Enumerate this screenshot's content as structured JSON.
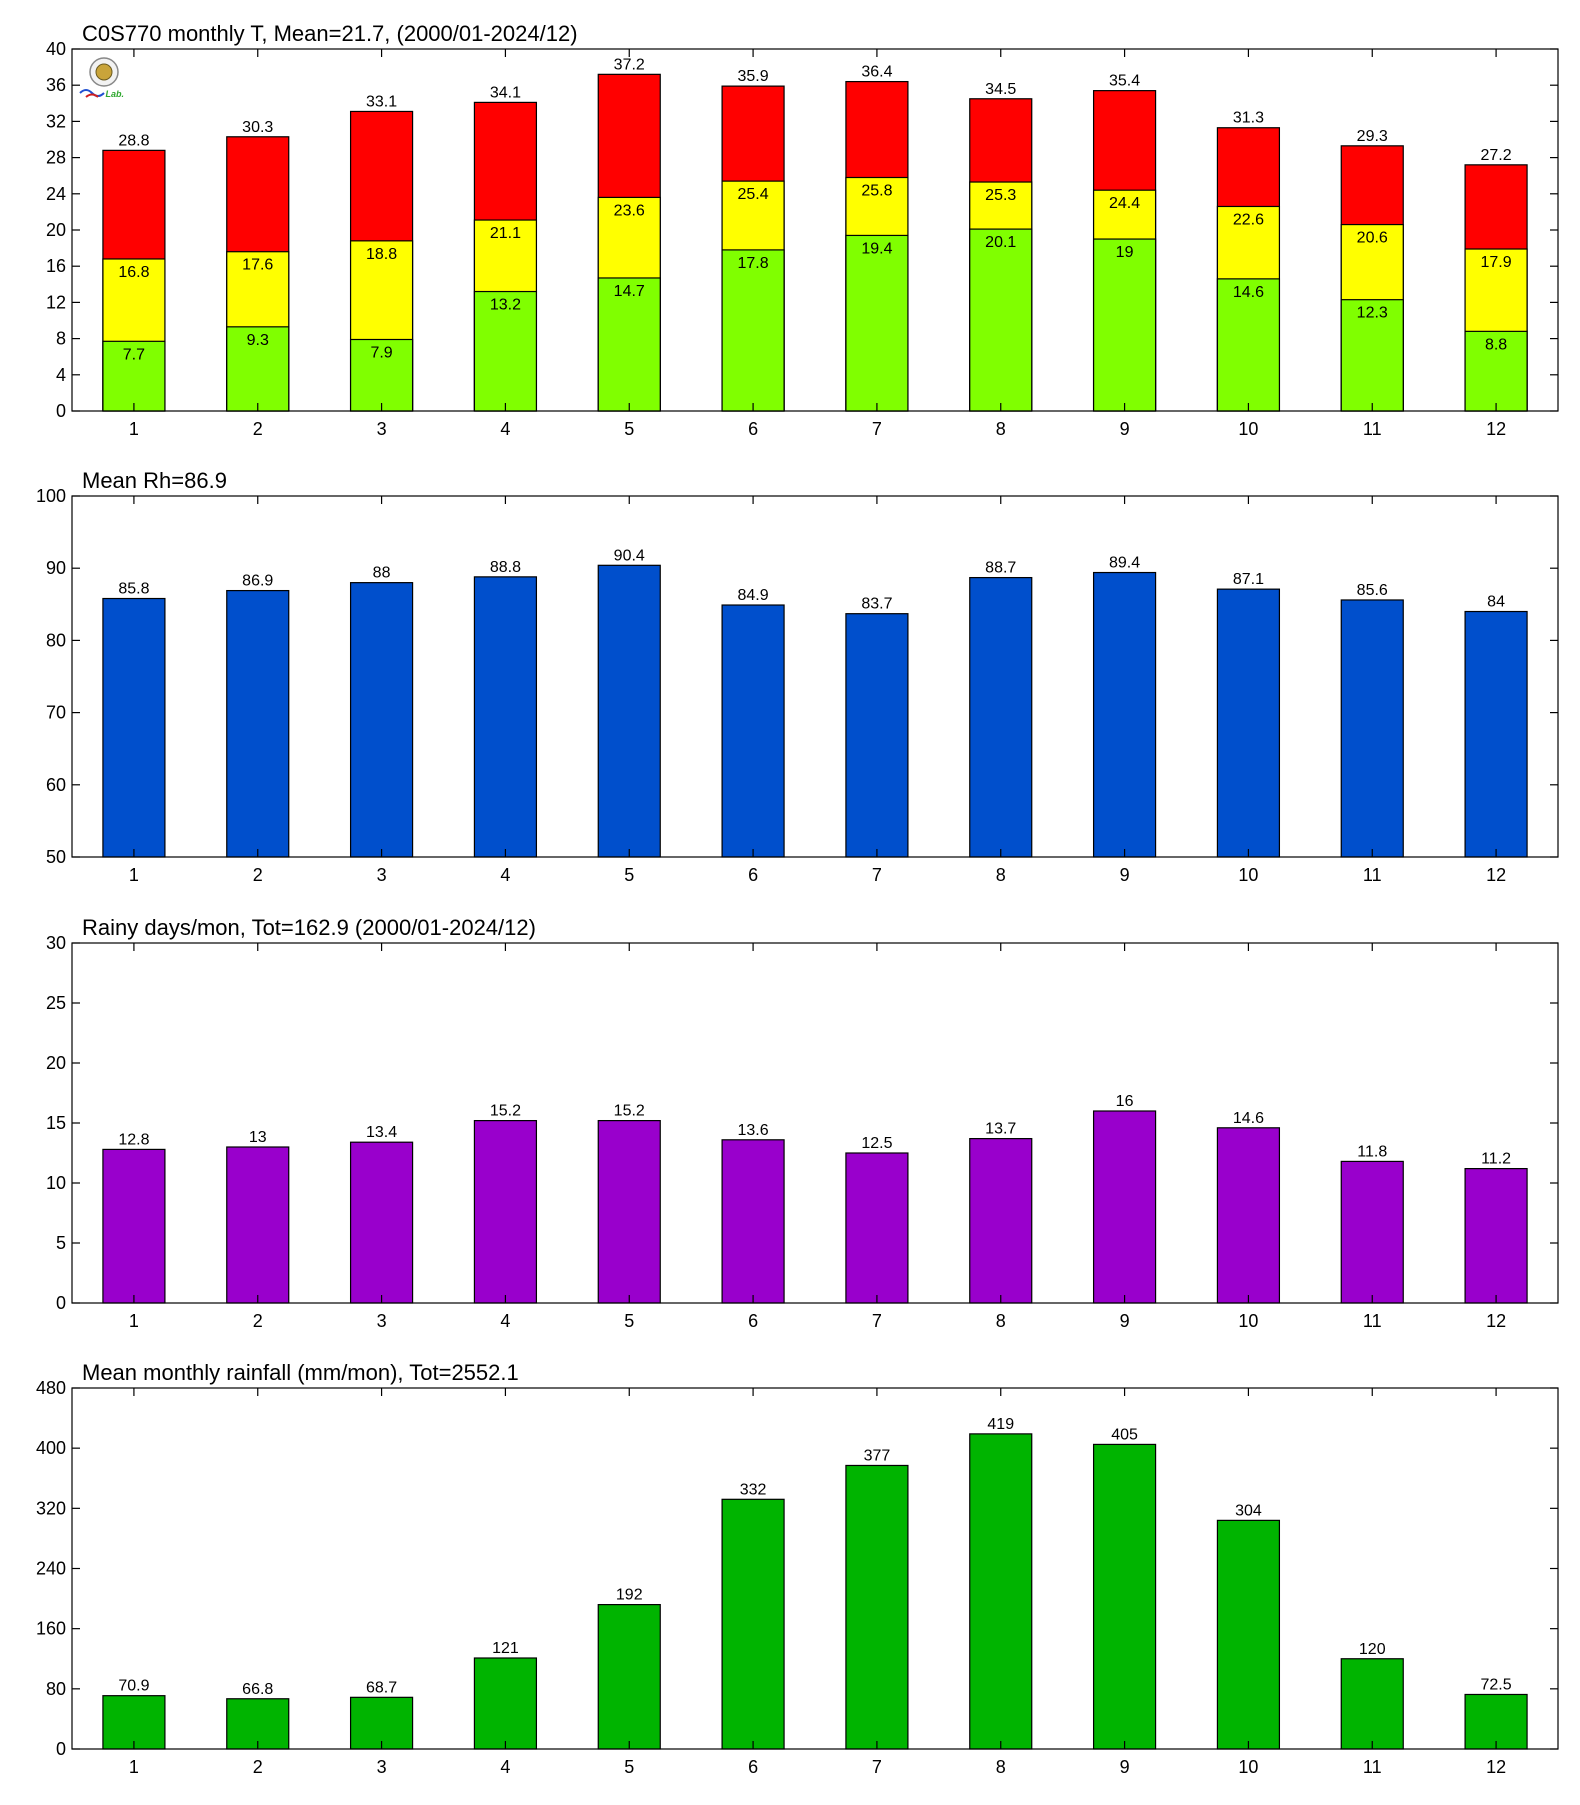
{
  "colors": {
    "t_max": "#ff0000",
    "t_mean": "#ffff00",
    "t_min": "#80ff00",
    "rh": "#004fcc",
    "rainy_days": "#9900cc",
    "rainfall": "#00b400"
  },
  "chart_data": [
    {
      "id": "temperature",
      "type": "bar",
      "stacked_overlay": true,
      "title": "C0S770 monthly T, Mean=21.7, (2000/01-2024/12)",
      "categories": [
        "1",
        "2",
        "3",
        "4",
        "5",
        "6",
        "7",
        "8",
        "9",
        "10",
        "11",
        "12"
      ],
      "series": [
        {
          "values": [
            28.8,
            30.3,
            33.1,
            34.1,
            37.2,
            35.9,
            36.4,
            34.5,
            35.4,
            31.3,
            29.3,
            27.2
          ],
          "color": "#ff0000",
          "label_position": "above"
        },
        {
          "values": [
            16.8,
            17.6,
            18.8,
            21.1,
            23.6,
            25.4,
            25.8,
            25.3,
            24.4,
            22.6,
            20.6,
            17.9
          ],
          "color": "#ffff00",
          "label_position": "inside"
        },
        {
          "values": [
            7.7,
            9.3,
            7.9,
            13.2,
            14.7,
            17.8,
            19.4,
            20.1,
            19,
            14.6,
            12.3,
            8.8
          ],
          "color": "#80ff00",
          "label_position": "inside"
        }
      ],
      "ylim": [
        0,
        40
      ],
      "yticks": [
        0,
        4,
        8,
        12,
        16,
        20,
        24,
        28,
        32,
        36,
        40
      ],
      "grid": false,
      "logo": {
        "text": "Lab."
      }
    },
    {
      "id": "humidity",
      "type": "bar",
      "title": "Mean Rh=86.9",
      "categories": [
        "1",
        "2",
        "3",
        "4",
        "5",
        "6",
        "7",
        "8",
        "9",
        "10",
        "11",
        "12"
      ],
      "series": [
        {
          "values": [
            85.8,
            86.9,
            88,
            88.8,
            90.4,
            84.9,
            83.7,
            88.7,
            89.4,
            87.1,
            85.6,
            84
          ],
          "color": "#004fcc",
          "label_position": "above"
        }
      ],
      "ylim": [
        50,
        100
      ],
      "yticks": [
        50,
        60,
        70,
        80,
        90,
        100
      ],
      "grid": false
    },
    {
      "id": "rainy_days",
      "type": "bar",
      "title": "Rainy days/mon, Tot=162.9 (2000/01-2024/12)",
      "categories": [
        "1",
        "2",
        "3",
        "4",
        "5",
        "6",
        "7",
        "8",
        "9",
        "10",
        "11",
        "12"
      ],
      "series": [
        {
          "values": [
            12.8,
            13,
            13.4,
            15.2,
            15.2,
            13.6,
            12.5,
            13.7,
            16,
            14.6,
            11.8,
            11.2
          ],
          "color": "#9900cc",
          "label_position": "above"
        }
      ],
      "ylim": [
        0,
        30
      ],
      "yticks": [
        0,
        5,
        10,
        15,
        20,
        25,
        30
      ],
      "grid": false
    },
    {
      "id": "rainfall",
      "type": "bar",
      "title": "Mean monthly rainfall (mm/mon), Tot=2552.1",
      "categories": [
        "1",
        "2",
        "3",
        "4",
        "5",
        "6",
        "7",
        "8",
        "9",
        "10",
        "11",
        "12"
      ],
      "series": [
        {
          "values": [
            70.9,
            66.8,
            68.7,
            121,
            192,
            332,
            377,
            419,
            405,
            304,
            120,
            72.5
          ],
          "color": "#00b400",
          "label_position": "above"
        }
      ],
      "ylim": [
        0,
        480
      ],
      "yticks": [
        0,
        80,
        160,
        240,
        320,
        400,
        480
      ],
      "grid": false
    }
  ]
}
